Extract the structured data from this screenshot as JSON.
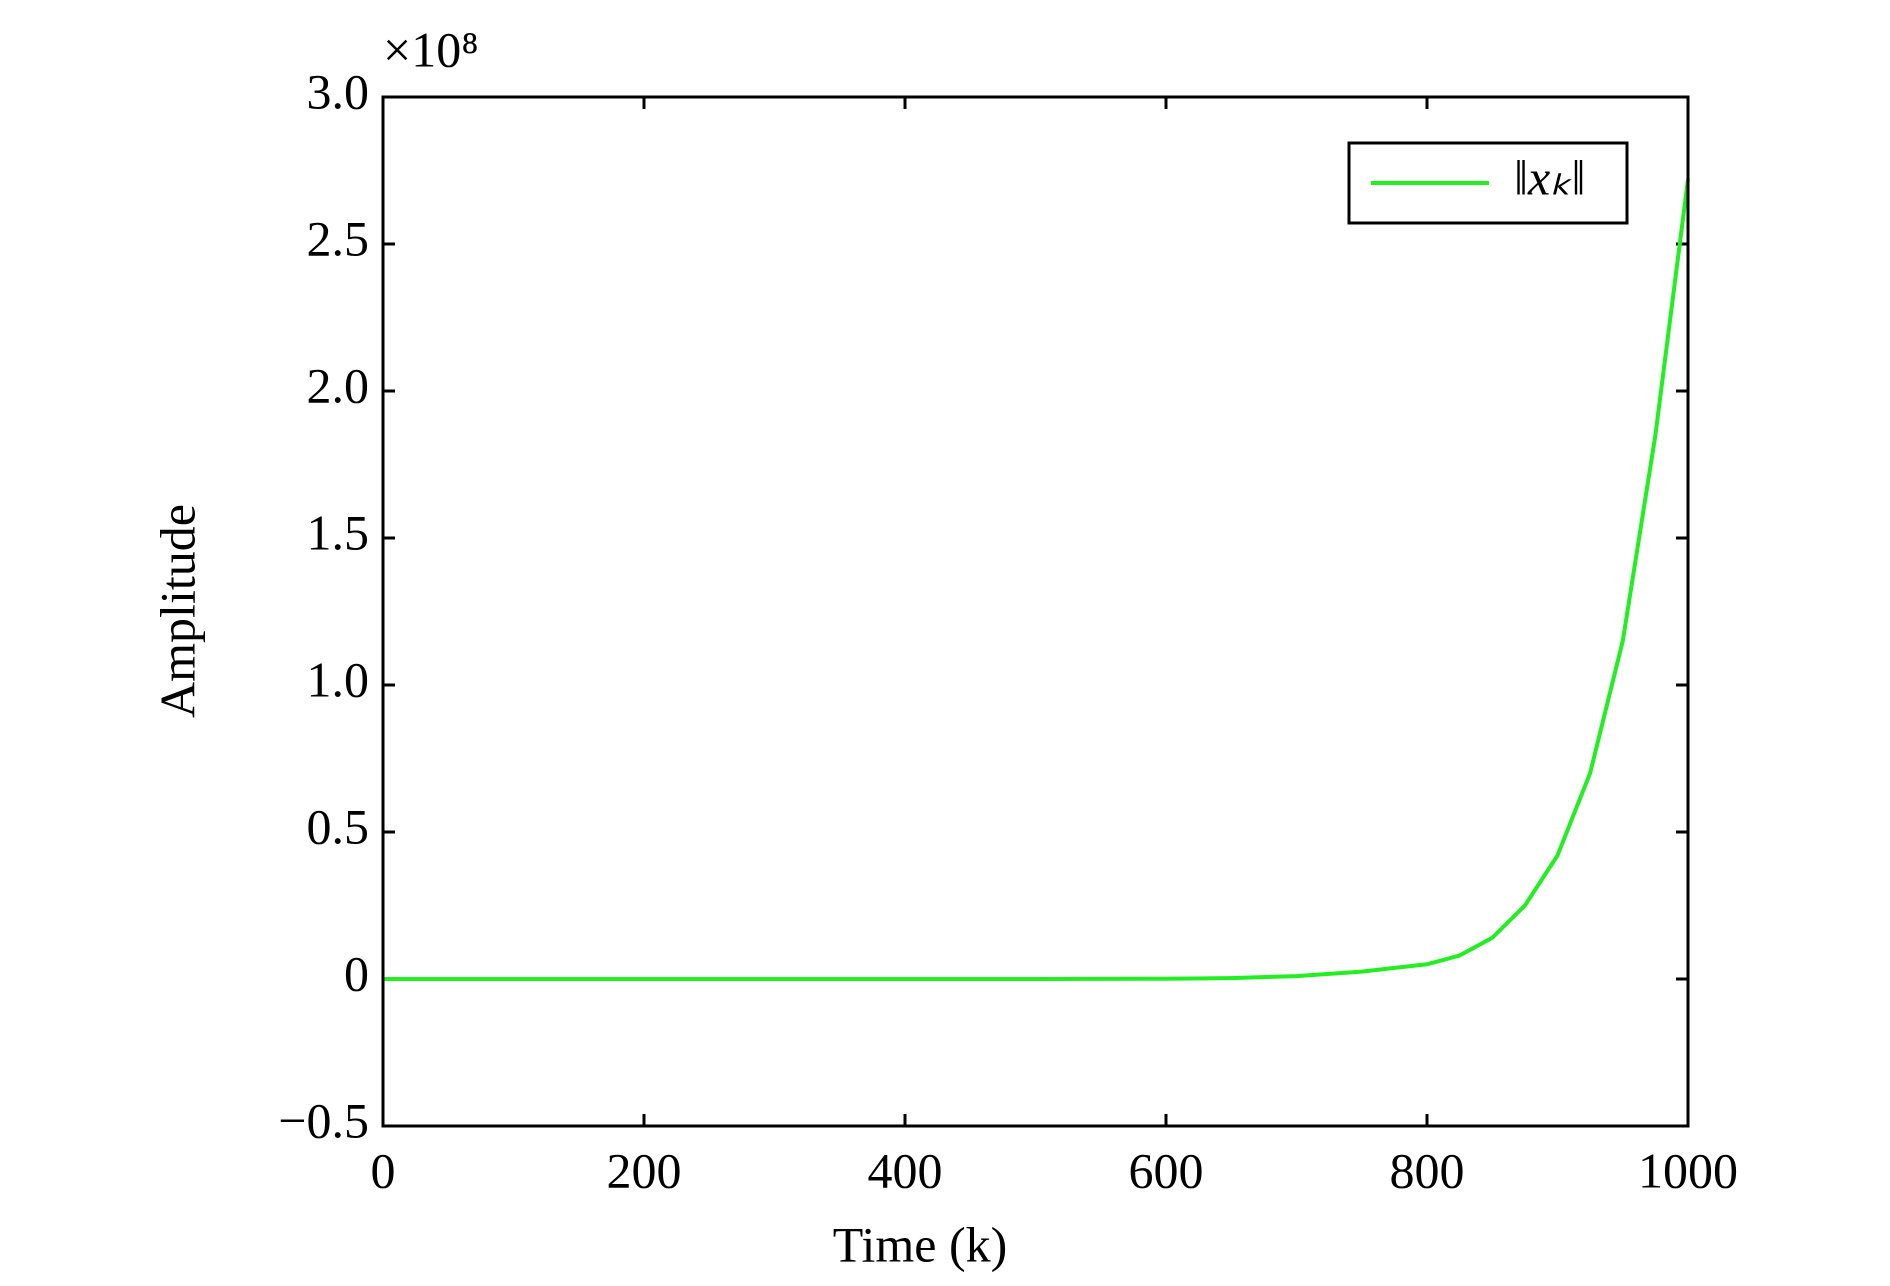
{
  "chart_data": {
    "type": "line",
    "y_label": "Amplitude",
    "x_label": "Time (k)",
    "y_multiplier": "×10⁸",
    "x": [
      0,
      100,
      200,
      300,
      400,
      500,
      600,
      650,
      700,
      750,
      800,
      825,
      850,
      875,
      900,
      925,
      950,
      975,
      1000
    ],
    "series": [
      {
        "name": "‖xₖ‖",
        "color": "#22ee22",
        "values": [
          0,
          0,
          0,
          0,
          0,
          0,
          0.001,
          0.003,
          0.01,
          0.025,
          0.05,
          0.08,
          0.14,
          0.25,
          0.42,
          0.7,
          1.15,
          1.85,
          2.72
        ]
      }
    ],
    "xlim": [
      0,
      1000
    ],
    "xticks": [
      0,
      200,
      400,
      600,
      800,
      1000
    ],
    "ylim": [
      -0.5,
      3
    ],
    "yticks": [
      {
        "value": -0.5,
        "label": "−0.5"
      },
      0,
      0.5,
      {
        "value": 1,
        "label": "1.0"
      },
      1.5,
      {
        "value": 2,
        "label": "2.0"
      },
      2.5,
      {
        "value": 3,
        "label": "3.0"
      }
    ],
    "legend": "upper right",
    "grid": false
  }
}
